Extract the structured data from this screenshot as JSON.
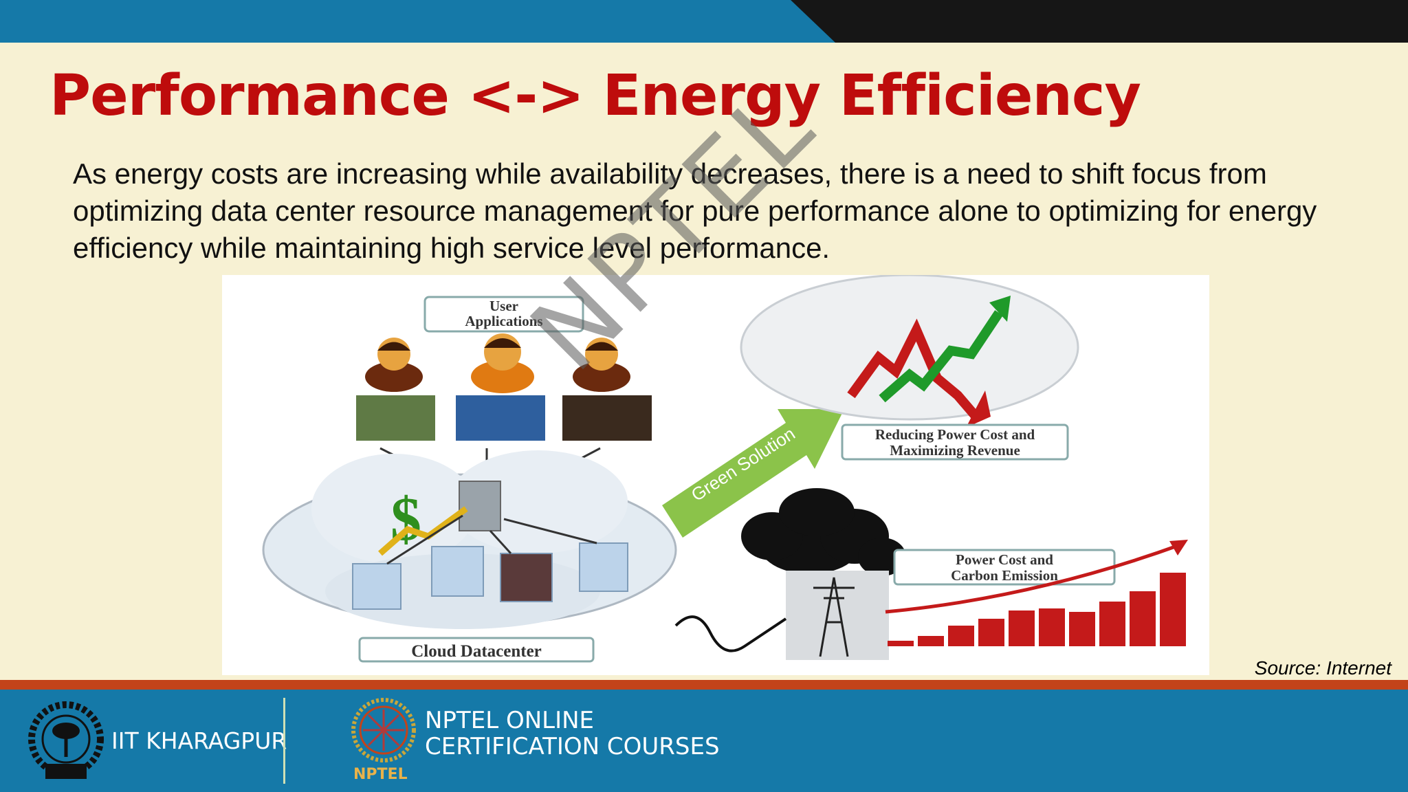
{
  "slide": {
    "title": "Performance <-> Energy Efficiency",
    "body": "As energy costs are increasing while availability decreases, there is a need to shift focus from optimizing data center resource management for pure performance alone to optimizing for energy efficiency while maintaining high service level performance.",
    "source": "Source: Internet",
    "watermark": "NPTEL"
  },
  "figure": {
    "user_applications": [
      "User",
      "Applications"
    ],
    "green_solution": "Green Solution",
    "reducing": [
      "Reducing Power Cost and",
      "Maximizing Revenue"
    ],
    "power_cost": [
      "Power Cost and",
      "Carbon Emission"
    ],
    "cloud_datacenter": "Cloud Datacenter",
    "dollar": "$"
  },
  "footer": {
    "iit": "IIT KHARAGPUR",
    "nptel_line1": "NPTEL ONLINE",
    "nptel_line2": "CERTIFICATION COURSES",
    "nptel_logo_text": "NPTEL"
  },
  "colors": {
    "title": "#be0c0c",
    "blue_band": "#1579a8",
    "orange_strip": "#c3431a",
    "background": "#f7f1d3"
  }
}
